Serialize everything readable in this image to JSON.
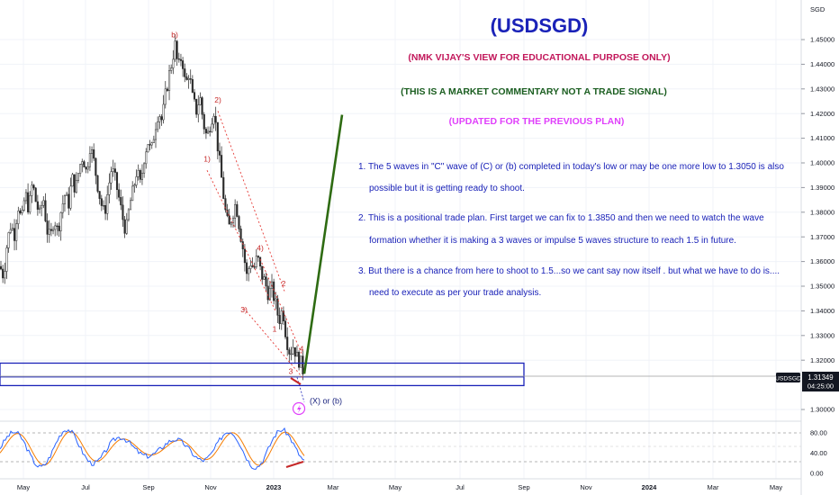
{
  "chart_data": {
    "type": "candlestick",
    "symbol": "USDSGD",
    "title": "(USDSGD)",
    "subtitles": [
      {
        "text": "(NMK VIJAY'S VIEW FOR EDUCATIONAL PURPOSE ONLY)",
        "color": "#c2185b"
      },
      {
        "text": "(THIS IS A MARKET COMMENTARY NOT A TRADE SIGNAL)",
        "color": "#1b5e20"
      },
      {
        "text": "(UPDATED FOR THE PREVIOUS PLAN)",
        "color": "#e040fb"
      }
    ],
    "notes": [
      {
        "lines": [
          "1. The 5 waves in \"C\" wave of (C) or (b) completed in today's low or may be one more low to 1.3050 is also",
          "possible but it is getting ready to shoot."
        ]
      },
      {
        "lines": [
          "2. This is a positional trade plan. First target we can fix to 1.3850 and then we need to watch the wave",
          "formation whether it is making a 3 waves or impulse 5 waves structure to reach 1.5 in future."
        ]
      },
      {
        "lines": [
          "3. But there is a chance from here to shoot to 1.5...so we cant say now itself . but what we have to do is....",
          "need to execute as per your trade analysis."
        ]
      }
    ],
    "currency": "SGD",
    "price_axis": {
      "min": 1.295,
      "max": 1.4565,
      "ticks": [
        "1.45000",
        "1.44000",
        "1.43000",
        "1.42000",
        "1.41000",
        "1.40000",
        "1.39000",
        "1.38000",
        "1.37000",
        "1.36000",
        "1.35000",
        "1.34000",
        "1.33000",
        "1.32000",
        "1.30000"
      ]
    },
    "last_price": {
      "label": "USDSGD",
      "value": "1.31349",
      "countdown": "04:25:00"
    },
    "time_axis": {
      "labels": [
        "May",
        "Jul",
        "Sep",
        "Nov",
        "2023",
        "Mar",
        "May",
        "Jul",
        "Sep",
        "Nov",
        "2024",
        "Mar",
        "May"
      ]
    },
    "price_path": [
      [
        0,
        1.358
      ],
      [
        4,
        1.354
      ],
      [
        8,
        1.368
      ],
      [
        12,
        1.375
      ],
      [
        16,
        1.371
      ],
      [
        20,
        1.383
      ],
      [
        24,
        1.376
      ],
      [
        28,
        1.388
      ],
      [
        32,
        1.381
      ],
      [
        36,
        1.392
      ],
      [
        40,
        1.384
      ],
      [
        44,
        1.379
      ],
      [
        48,
        1.386
      ],
      [
        52,
        1.373
      ],
      [
        56,
        1.369
      ],
      [
        60,
        1.378
      ],
      [
        64,
        1.372
      ],
      [
        68,
        1.381
      ],
      [
        72,
        1.387
      ],
      [
        76,
        1.383
      ],
      [
        80,
        1.394
      ],
      [
        84,
        1.389
      ],
      [
        88,
        1.398
      ],
      [
        92,
        1.403
      ],
      [
        96,
        1.396
      ],
      [
        100,
        1.407
      ],
      [
        104,
        1.401
      ],
      [
        108,
        1.392
      ],
      [
        112,
        1.384
      ],
      [
        116,
        1.379
      ],
      [
        120,
        1.389
      ],
      [
        124,
        1.398
      ],
      [
        128,
        1.393
      ],
      [
        132,
        1.386
      ],
      [
        136,
        1.378
      ],
      [
        140,
        1.372
      ],
      [
        144,
        1.383
      ],
      [
        148,
        1.389
      ],
      [
        152,
        1.397
      ],
      [
        156,
        1.391
      ],
      [
        160,
        1.402
      ],
      [
        164,
        1.409
      ],
      [
        168,
        1.404
      ],
      [
        172,
        1.414
      ],
      [
        176,
        1.421
      ],
      [
        180,
        1.417
      ],
      [
        184,
        1.428
      ],
      [
        188,
        1.436
      ],
      [
        192,
        1.443
      ],
      [
        194,
        1.449
      ],
      [
        198,
        1.438
      ],
      [
        202,
        1.444
      ],
      [
        206,
        1.431
      ],
      [
        210,
        1.437
      ],
      [
        214,
        1.426
      ],
      [
        218,
        1.421
      ],
      [
        222,
        1.427
      ],
      [
        226,
        1.416
      ],
      [
        230,
        1.41
      ],
      [
        234,
        1.417
      ],
      [
        238,
        1.422
      ],
      [
        242,
        1.406
      ],
      [
        246,
        1.394
      ],
      [
        250,
        1.381
      ],
      [
        254,
        1.373
      ],
      [
        258,
        1.379
      ],
      [
        262,
        1.384
      ],
      [
        266,
        1.374
      ],
      [
        270,
        1.365
      ],
      [
        274,
        1.354
      ],
      [
        278,
        1.36
      ],
      [
        282,
        1.357
      ],
      [
        286,
        1.362
      ],
      [
        290,
        1.355
      ],
      [
        294,
        1.352
      ],
      [
        298,
        1.347
      ],
      [
        302,
        1.349
      ],
      [
        306,
        1.343
      ],
      [
        310,
        1.336
      ],
      [
        314,
        1.341
      ],
      [
        318,
        1.329
      ],
      [
        322,
        1.323
      ],
      [
        326,
        1.326
      ],
      [
        330,
        1.321
      ],
      [
        334,
        1.319
      ],
      [
        338,
        1.314
      ]
    ],
    "annotations": {
      "zone": {
        "top": 1.3188,
        "bottom": 1.3097
      },
      "green_projection": {
        "from": [
          338,
          1.3145
        ],
        "to": [
          380,
          1.4195
        ]
      },
      "wave_labels": [
        {
          "text": "b)",
          "x": 194,
          "y": 1.451,
          "color": "#c62828"
        },
        {
          "text": "2)",
          "x": 242,
          "y": 1.4245,
          "color": "#c62828"
        },
        {
          "text": "1)",
          "x": 230,
          "y": 1.4005,
          "color": "#c62828"
        },
        {
          "text": "4)",
          "x": 289,
          "y": 1.3645,
          "color": "#c62828"
        },
        {
          "text": "3)",
          "x": 271,
          "y": 1.3395,
          "color": "#c62828"
        },
        {
          "text": "2",
          "x": 315,
          "y": 1.35,
          "color": "#c62828"
        },
        {
          "text": "1",
          "x": 305,
          "y": 1.3315,
          "color": "#c62828"
        },
        {
          "text": "4",
          "x": 335,
          "y": 1.3235,
          "color": "#c62828"
        },
        {
          "text": "3",
          "x": 323,
          "y": 1.3145,
          "color": "#c62828"
        },
        {
          "text": "(X) or (b)",
          "x": 362,
          "y": 1.3023,
          "color": "#1a237e"
        }
      ],
      "dotted_lines": [
        [
          [
            230,
            1.397
          ],
          [
            306,
            1.34
          ]
        ],
        [
          [
            242,
            1.421
          ],
          [
            316,
            1.348
          ]
        ],
        [
          [
            271,
            1.341
          ],
          [
            336,
            1.313
          ]
        ],
        [
          [
            289,
            1.361
          ],
          [
            336,
            1.322
          ]
        ]
      ]
    },
    "oscillator": {
      "ticks": [
        "80.00",
        "40.00",
        "0.00"
      ],
      "range": [
        0,
        100
      ],
      "levels": [
        80,
        50,
        20
      ]
    }
  }
}
